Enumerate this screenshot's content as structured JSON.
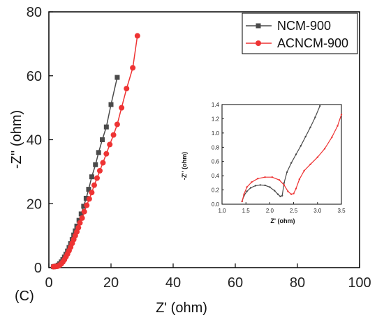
{
  "panel_label": "(C)",
  "chart_data": [
    {
      "type": "scatter",
      "title": "",
      "xlabel": "Z' (ohm)",
      "ylabel": "-Z'' (ohm)",
      "xlim": [
        0,
        100
      ],
      "ylim": [
        0,
        80
      ],
      "xticks": [
        "0",
        "20",
        "40",
        "60",
        "80",
        "100"
      ],
      "yticks": [
        "0",
        "20",
        "40",
        "60",
        "80"
      ],
      "legend": "top-right",
      "series": [
        {
          "name": "NCM-900",
          "color": "#4a4a4a",
          "marker": "square",
          "points": [
            [
              1.5,
              0.3
            ],
            [
              2,
              0.4
            ],
            [
              2.5,
              0.5
            ],
            [
              3,
              0.8
            ],
            [
              3.5,
              1.2
            ],
            [
              4,
              1.8
            ],
            [
              4.5,
              2.5
            ],
            [
              5,
              3.3
            ],
            [
              5.5,
              4.2
            ],
            [
              6,
              5.2
            ],
            [
              6.5,
              6.3
            ],
            [
              7,
              7.5
            ],
            [
              7.5,
              8.8
            ],
            [
              8,
              10.2
            ],
            [
              8.5,
              11.5
            ],
            [
              9,
              13
            ],
            [
              9.7,
              14.8
            ],
            [
              10.4,
              16.8
            ],
            [
              11.2,
              19.2
            ],
            [
              12,
              21.7
            ],
            [
              12.8,
              24.5
            ],
            [
              13.8,
              28.4
            ],
            [
              15,
              32.2
            ],
            [
              16,
              36
            ],
            [
              17.2,
              40
            ],
            [
              18.5,
              44
            ],
            [
              20,
              51
            ],
            [
              22,
              59.5
            ]
          ]
        },
        {
          "name": "ACNCM-900",
          "color": "#ee3333",
          "marker": "circle",
          "points": [
            [
              1.5,
              0.3
            ],
            [
              2,
              0.35
            ],
            [
              2.5,
              0.4
            ],
            [
              3,
              0.5
            ],
            [
              3.5,
              0.8
            ],
            [
              4,
              1.2
            ],
            [
              4.5,
              1.8
            ],
            [
              5,
              2.5
            ],
            [
              5.5,
              3.4
            ],
            [
              6,
              4.3
            ],
            [
              6.5,
              5.3
            ],
            [
              7,
              6.4
            ],
            [
              7.5,
              7.6
            ],
            [
              8,
              8.8
            ],
            [
              8.5,
              10
            ],
            [
              9,
              11.2
            ],
            [
              9.5,
              12.5
            ],
            [
              10,
              14
            ],
            [
              10.7,
              15.5
            ],
            [
              11.4,
              17.5
            ],
            [
              12.2,
              19.5
            ],
            [
              13,
              21.5
            ],
            [
              13.8,
              23.5
            ],
            [
              14.6,
              25.8
            ],
            [
              15.5,
              28
            ],
            [
              16.4,
              30.3
            ],
            [
              17.4,
              32.8
            ],
            [
              18.5,
              35.6
            ],
            [
              19.6,
              38.5
            ],
            [
              20.8,
              41.5
            ],
            [
              22,
              44.8
            ],
            [
              23.4,
              50
            ],
            [
              25,
              56
            ],
            [
              27,
              62.5
            ],
            [
              28.5,
              72.5
            ]
          ]
        }
      ]
    },
    {
      "type": "line",
      "title": "",
      "xlabel": "Z' (ohm)",
      "ylabel": "-Z'' (ohm)",
      "xlim": [
        1.0,
        3.5
      ],
      "ylim": [
        0.0,
        1.4
      ],
      "xticks": [
        "1.0",
        "1.5",
        "2.0",
        "2.5",
        "3.0",
        "3.5"
      ],
      "yticks": [
        "0.0",
        "0.2",
        "0.4",
        "0.6",
        "0.8",
        "1.0",
        "1.2",
        "1.4"
      ],
      "series": [
        {
          "name": "NCM-900",
          "color": "#4a4a4a",
          "points": [
            [
              1.42,
              0.04
            ],
            [
              1.46,
              0.12
            ],
            [
              1.52,
              0.18
            ],
            [
              1.6,
              0.23
            ],
            [
              1.7,
              0.26
            ],
            [
              1.8,
              0.27
            ],
            [
              1.9,
              0.265
            ],
            [
              2.0,
              0.24
            ],
            [
              2.1,
              0.19
            ],
            [
              2.17,
              0.14
            ],
            [
              2.22,
              0.11
            ],
            [
              2.26,
              0.12
            ],
            [
              2.3,
              0.3
            ],
            [
              2.36,
              0.45
            ],
            [
              2.45,
              0.58
            ],
            [
              2.55,
              0.7
            ],
            [
              2.65,
              0.82
            ],
            [
              2.75,
              0.95
            ],
            [
              2.85,
              1.08
            ],
            [
              2.95,
              1.22
            ],
            [
              3.05,
              1.38
            ]
          ]
        },
        {
          "name": "ACNCM-900",
          "color": "#ee3333",
          "points": [
            [
              1.42,
              0.04
            ],
            [
              1.46,
              0.14
            ],
            [
              1.52,
              0.24
            ],
            [
              1.62,
              0.31
            ],
            [
              1.75,
              0.36
            ],
            [
              1.9,
              0.38
            ],
            [
              2.05,
              0.38
            ],
            [
              2.2,
              0.34
            ],
            [
              2.3,
              0.27
            ],
            [
              2.38,
              0.18
            ],
            [
              2.45,
              0.14
            ],
            [
              2.5,
              0.15
            ],
            [
              2.55,
              0.22
            ],
            [
              2.62,
              0.35
            ],
            [
              2.72,
              0.47
            ],
            [
              2.85,
              0.56
            ],
            [
              3.0,
              0.66
            ],
            [
              3.15,
              0.78
            ],
            [
              3.3,
              0.94
            ],
            [
              3.42,
              1.1
            ],
            [
              3.5,
              1.26
            ]
          ]
        }
      ]
    }
  ]
}
